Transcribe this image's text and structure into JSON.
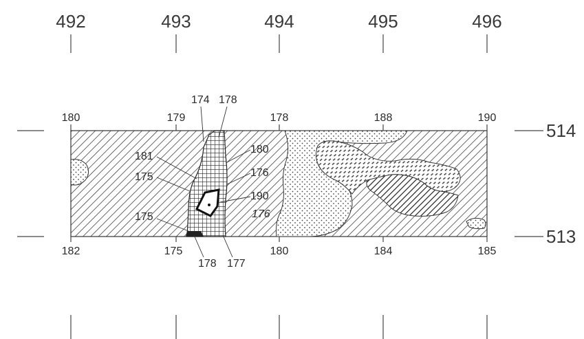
{
  "grid": {
    "top_columns": [
      "492",
      "493",
      "494",
      "495",
      "496"
    ],
    "right_rows": [
      "514",
      "513"
    ]
  },
  "section": {
    "top_labels": [
      "180",
      "179",
      "178",
      "188",
      "190"
    ],
    "bottom_labels": [
      "182",
      "175",
      "180",
      "184",
      "185"
    ]
  },
  "callouts": {
    "c174": "174",
    "c178_top": "178",
    "c181": "181",
    "c175_mid": "175",
    "c180_right": "180",
    "c176_right": "176",
    "c190": "190",
    "c176_italic": "176",
    "c175_low": "175",
    "c178_bottom": "178",
    "c177": "177"
  },
  "colors": {
    "ink": "#333333",
    "background": "#ffffff"
  }
}
